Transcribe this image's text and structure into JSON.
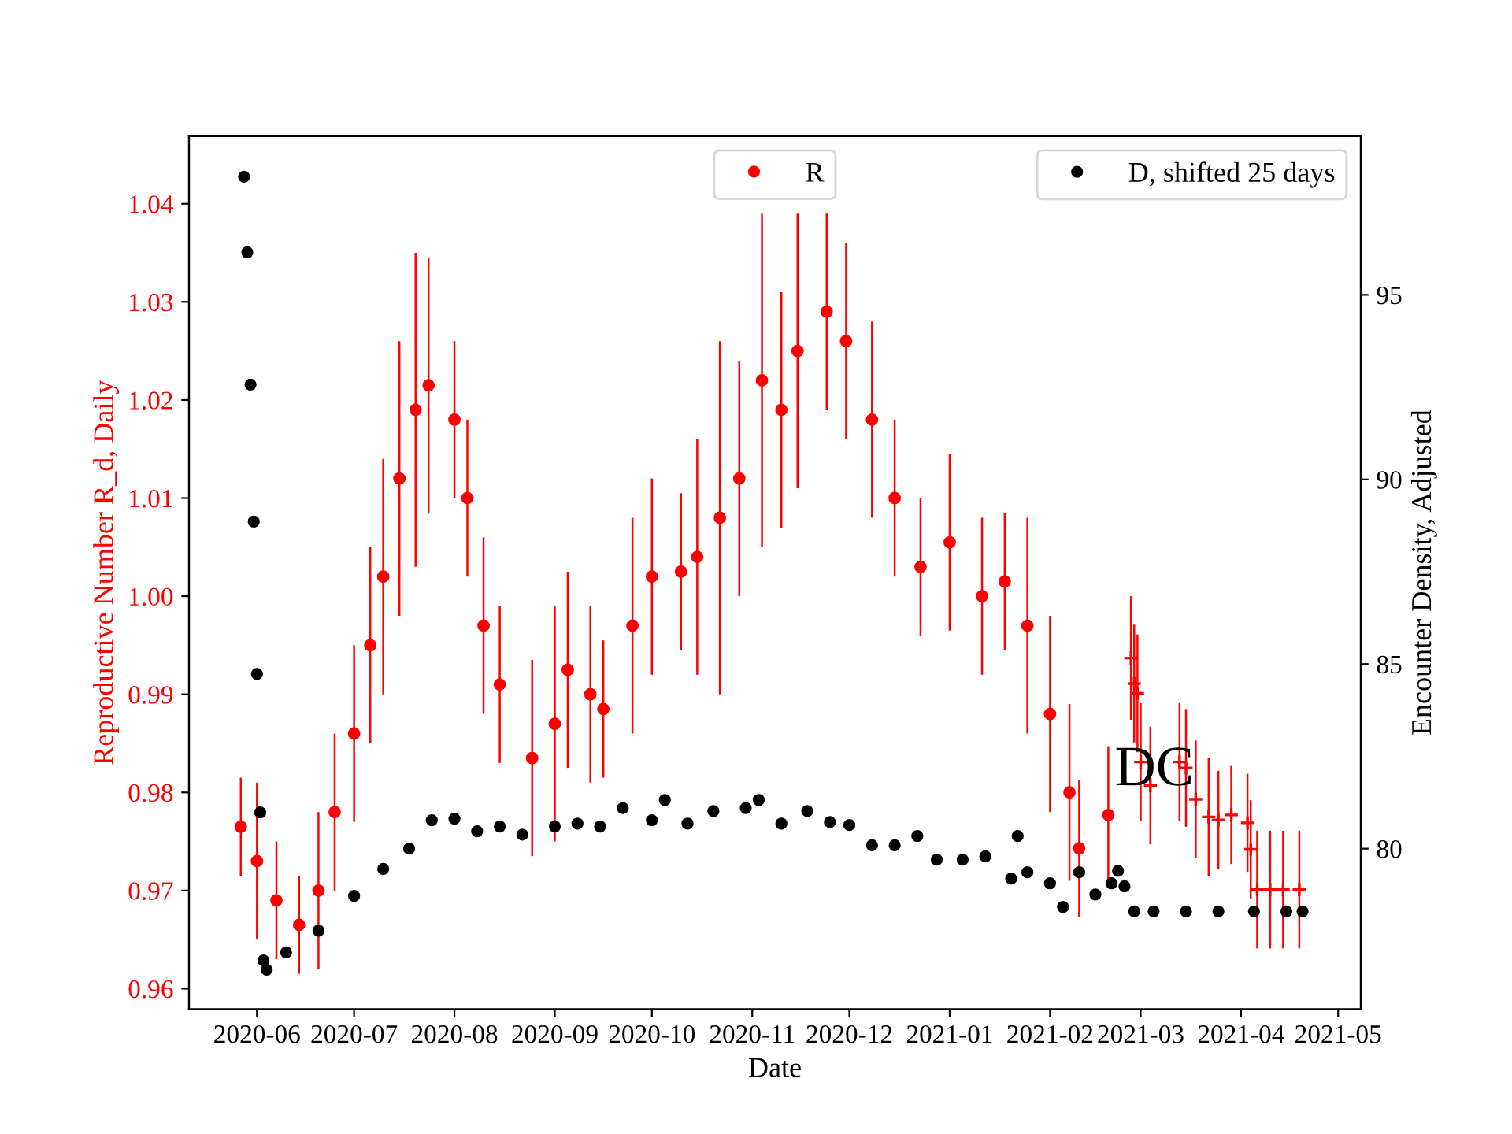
{
  "chart_data": {
    "type": "scatter",
    "xlabel": "Date",
    "ylabel": "Reproductive Number R_d, Daily",
    "y2label": "Encounter Density, Adjusted",
    "xlim": [
      "2020-05-11",
      "2021-05-08"
    ],
    "xticks": [
      {
        "value": "2020-06-01",
        "label": "2020-06"
      },
      {
        "value": "2020-07-01",
        "label": "2020-07"
      },
      {
        "value": "2020-08-01",
        "label": "2020-08"
      },
      {
        "value": "2020-09-01",
        "label": "2020-09"
      },
      {
        "value": "2020-10-01",
        "label": "2020-10"
      },
      {
        "value": "2020-11-01",
        "label": "2020-11"
      },
      {
        "value": "2020-12-01",
        "label": "2020-12"
      },
      {
        "value": "2021-01-01",
        "label": "2021-01"
      },
      {
        "value": "2021-02-01",
        "label": "2021-02"
      },
      {
        "value": "2021-03-01",
        "label": "2021-03"
      },
      {
        "value": "2021-04-01",
        "label": "2021-04"
      },
      {
        "value": "2021-05-01",
        "label": "2021-05"
      }
    ],
    "ylim": [
      0.9579,
      1.0469
    ],
    "yticks": [
      0.96,
      0.97,
      0.98,
      0.99,
      {
        "value": 1.0,
        "label": "1.00"
      },
      1.01,
      1.02,
      1.03,
      1.04
    ],
    "y2lim": [
      75.65,
      99.3
    ],
    "y2ticks": [
      80,
      85,
      90,
      95
    ],
    "grid": false,
    "legend": "top right",
    "annotations": [
      {
        "text": "DC",
        "x": "2021-02-21",
        "y": 0.9795
      }
    ],
    "series": [
      {
        "name": "R",
        "color": "#ff0000",
        "marker": "circle",
        "x": [
          "2020-05-27",
          "2020-06-01",
          "2020-06-07",
          "2020-06-14",
          "2020-06-20",
          "2020-06-25",
          "2020-07-01",
          "2020-07-06",
          "2020-07-10",
          "2020-07-15",
          "2020-07-20",
          "2020-07-24",
          "2020-08-01",
          "2020-08-05",
          "2020-08-10",
          "2020-08-15",
          "2020-08-25",
          "2020-09-01",
          "2020-09-05",
          "2020-09-12",
          "2020-09-16",
          "2020-09-25",
          "2020-10-01",
          "2020-10-10",
          "2020-10-15",
          "2020-10-22",
          "2020-10-28",
          "2020-11-04",
          "2020-11-10",
          "2020-11-15",
          "2020-11-24",
          "2020-11-30",
          "2020-12-08",
          "2020-12-15",
          "2020-12-23",
          "2021-01-01",
          "2021-01-11",
          "2021-01-18",
          "2021-01-25",
          "2021-02-01",
          "2021-02-07",
          "2021-02-10",
          "2021-02-19"
        ],
        "values": [
          0.9765,
          0.973,
          0.969,
          0.9665,
          0.97,
          0.978,
          0.986,
          0.995,
          1.002,
          1.012,
          1.019,
          1.0215,
          1.018,
          1.01,
          0.997,
          0.991,
          0.9835,
          0.987,
          0.9925,
          0.99,
          0.9885,
          0.997,
          1.002,
          1.0025,
          1.004,
          1.008,
          1.012,
          1.022,
          1.019,
          1.025,
          1.029,
          1.026,
          1.018,
          1.01,
          1.003,
          1.0055,
          1.0,
          1.0015,
          0.997,
          0.988,
          0.98,
          0.9743,
          0.9777
        ],
        "errors": [
          0.005,
          0.008,
          0.006,
          0.005,
          0.008,
          0.008,
          0.009,
          0.01,
          0.012,
          0.014,
          0.016,
          0.013,
          0.008,
          0.008,
          0.009,
          0.008,
          0.01,
          0.012,
          0.01,
          0.009,
          0.007,
          0.011,
          0.01,
          0.008,
          0.012,
          0.018,
          0.012,
          0.017,
          0.012,
          0.014,
          0.01,
          0.01,
          0.01,
          0.008,
          0.007,
          0.009,
          0.008,
          0.007,
          0.011,
          0.01,
          0.009,
          0.007,
          0.007
        ]
      },
      {
        "color": "#ff0000",
        "marker": "cross",
        "x": [
          "2021-02-26",
          "2021-02-27",
          "2021-02-28",
          "2021-03-01",
          "2021-03-04",
          "2021-03-13",
          "2021-03-15",
          "2021-03-18",
          "2021-03-22",
          "2021-03-25",
          "2021-03-29",
          "2021-04-03",
          "2021-04-04",
          "2021-04-06",
          "2021-04-10",
          "2021-04-14",
          "2021-04-19"
        ],
        "values": [
          0.9937,
          0.9911,
          0.9901,
          0.9831,
          0.9807,
          0.9831,
          0.9825,
          0.9793,
          0.9775,
          0.9772,
          0.9777,
          0.9769,
          0.9742,
          0.9701,
          0.9701,
          0.9701,
          0.9701
        ],
        "errors": [
          0.0063,
          0.006,
          0.006,
          0.006,
          0.006,
          0.006,
          0.006,
          0.006,
          0.006,
          0.005,
          0.005,
          0.005,
          0.005,
          0.006,
          0.006,
          0.006,
          0.006
        ]
      },
      {
        "name": "D, shifted 25 days",
        "color": "#000000",
        "marker": "circle",
        "axis": "y2",
        "x": [
          "2020-05-28",
          "2020-05-29",
          "2020-05-30",
          "2020-05-31",
          "2020-06-01",
          "2020-06-02",
          "2020-06-03",
          "2020-06-04",
          "2020-06-10",
          "2020-06-20",
          "2020-07-01",
          "2020-07-10",
          "2020-07-18",
          "2020-07-25",
          "2020-08-01",
          "2020-08-08",
          "2020-08-15",
          "2020-08-22",
          "2020-09-01",
          "2020-09-08",
          "2020-09-15",
          "2020-09-22",
          "2020-10-01",
          "2020-10-05",
          "2020-10-12",
          "2020-10-20",
          "2020-10-30",
          "2020-11-03",
          "2020-11-10",
          "2020-11-18",
          "2020-11-25",
          "2020-12-01",
          "2020-12-08",
          "2020-12-15",
          "2020-12-22",
          "2020-12-28",
          "2021-01-05",
          "2021-01-12",
          "2021-01-20",
          "2021-01-22",
          "2021-01-25",
          "2021-02-01",
          "2021-02-05",
          "2021-02-10",
          "2021-02-15",
          "2021-02-20",
          "2021-02-22",
          "2021-02-24",
          "2021-02-27",
          "2021-03-05",
          "2021-03-15",
          "2021-03-25",
          "2021-04-05",
          "2021-04-15",
          "2021-04-20"
        ],
        "values": [
          98.2,
          96.15,
          92.57,
          88.86,
          84.73,
          80.98,
          76.97,
          76.72,
          77.19,
          77.78,
          78.72,
          79.45,
          80.0,
          80.77,
          80.81,
          80.47,
          80.6,
          80.38,
          80.6,
          80.68,
          80.6,
          81.1,
          80.77,
          81.32,
          80.68,
          81.02,
          81.1,
          81.32,
          80.68,
          81.02,
          80.72,
          80.64,
          80.09,
          80.09,
          80.34,
          79.7,
          79.7,
          79.79,
          79.19,
          80.34,
          79.36,
          79.06,
          78.42,
          79.36,
          78.76,
          79.06,
          79.4,
          78.98,
          78.3,
          78.3,
          78.3,
          78.3,
          78.3,
          78.3,
          78.3
        ]
      }
    ]
  }
}
